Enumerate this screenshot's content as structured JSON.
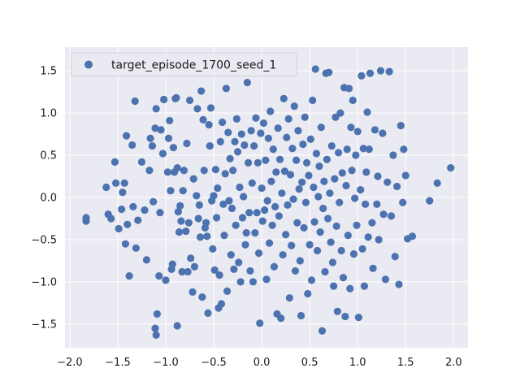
{
  "chart_data": {
    "type": "scatter",
    "title": "",
    "xlabel": "",
    "ylabel": "",
    "xlim": [
      -2.05,
      2.15
    ],
    "ylim": [
      -1.78,
      1.78
    ],
    "grid": true,
    "legend_position": "top-left",
    "x_ticks": [
      -2.0,
      -1.5,
      -1.0,
      -0.5,
      0.0,
      0.5,
      1.0,
      1.5,
      2.0
    ],
    "x_tick_labels": [
      "−2.0",
      "−1.5",
      "−1.0",
      "−0.5",
      "0.0",
      "0.5",
      "1.0",
      "1.5",
      "2.0"
    ],
    "y_ticks": [
      -1.5,
      -1.0,
      -0.5,
      0.0,
      0.5,
      1.0,
      1.5
    ],
    "y_tick_labels": [
      "−1.5",
      "−1.0",
      "−0.5",
      "0.0",
      "0.5",
      "1.0",
      "1.5"
    ],
    "colors": {
      "background": "#eaeaf2",
      "grid": "#ffffff",
      "marker": "#4c72b0"
    },
    "series": [
      {
        "name": "target_episode_1700_seed_1",
        "points": [
          [
            -1.83,
            -0.24
          ],
          [
            -1.83,
            -0.28
          ],
          [
            -1.62,
            0.12
          ],
          [
            -1.6,
            -0.2
          ],
          [
            -1.57,
            -0.25
          ],
          [
            -1.53,
            0.42
          ],
          [
            -1.52,
            0.17
          ],
          [
            -1.49,
            -0.37
          ],
          [
            -1.46,
            -0.14
          ],
          [
            -1.45,
            0.06
          ],
          [
            -1.43,
            0.17
          ],
          [
            -1.42,
            -0.55
          ],
          [
            -1.41,
            0.73
          ],
          [
            -1.4,
            -0.32
          ],
          [
            -1.38,
            -0.93
          ],
          [
            -1.35,
            0.62
          ],
          [
            -1.34,
            -0.11
          ],
          [
            -1.32,
            1.14
          ],
          [
            -1.31,
            -0.6
          ],
          [
            -1.29,
            -0.27
          ],
          [
            -1.25,
            0.42
          ],
          [
            -1.22,
            -0.15
          ],
          [
            -1.2,
            -0.74
          ],
          [
            -1.17,
            0.32
          ],
          [
            -1.16,
            0.7
          ],
          [
            -1.14,
            0.61
          ],
          [
            -1.13,
            -0.05
          ],
          [
            -1.11,
            -1.55
          ],
          [
            -1.11,
            0.82
          ],
          [
            -1.1,
            1.05
          ],
          [
            -1.1,
            -1.63
          ],
          [
            -1.09,
            -1.38
          ],
          [
            -1.07,
            -0.93
          ],
          [
            -1.06,
            -0.18
          ],
          [
            -1.05,
            0.8
          ],
          [
            -1.03,
            0.52
          ],
          [
            -1.02,
            1.16
          ],
          [
            -1.0,
            -0.98
          ],
          [
            -0.98,
            0.3
          ],
          [
            -0.97,
            0.7
          ],
          [
            -0.96,
            0.91
          ],
          [
            -0.95,
            0.08
          ],
          [
            -0.94,
            -0.85
          ],
          [
            -0.93,
            -0.79
          ],
          [
            -0.92,
            0.59
          ],
          [
            -0.91,
            0.3
          ],
          [
            -0.9,
            1.17
          ],
          [
            -0.89,
            1.18
          ],
          [
            -0.88,
            -1.52
          ],
          [
            -0.88,
            0.35
          ],
          [
            -0.87,
            -0.17
          ],
          [
            -0.86,
            -0.41
          ],
          [
            -0.85,
            -0.1
          ],
          [
            -0.84,
            -0.28
          ],
          [
            -0.83,
            -0.88
          ],
          [
            -0.82,
            0.08
          ],
          [
            -0.81,
            0.32
          ],
          [
            -0.79,
            -0.4
          ],
          [
            -0.78,
            0.64
          ],
          [
            -0.77,
            -0.88
          ],
          [
            -0.76,
            -0.3
          ],
          [
            -0.75,
            1.15
          ],
          [
            -0.74,
            -0.72
          ],
          [
            -0.72,
            -1.12
          ],
          [
            -0.71,
            0.22
          ],
          [
            -0.7,
            -0.82
          ],
          [
            -0.68,
            0.02
          ],
          [
            -0.67,
            1.05
          ],
          [
            -0.66,
            -0.25
          ],
          [
            -0.65,
            -0.09
          ],
          [
            -0.64,
            -0.47
          ],
          [
            -0.63,
            1.26
          ],
          [
            -0.62,
            -1.18
          ],
          [
            -0.61,
            0.92
          ],
          [
            -0.6,
            0.32
          ],
          [
            -0.59,
            -0.36
          ],
          [
            -0.58,
            -0.3
          ],
          [
            -0.57,
            -0.46
          ],
          [
            -0.56,
            -1.37
          ],
          [
            -0.55,
            0.86
          ],
          [
            -0.54,
            0.61
          ],
          [
            -0.53,
            1.06
          ],
          [
            -0.52,
            -0.04
          ],
          [
            -0.51,
            -0.61
          ],
          [
            -0.5,
            0.02
          ],
          [
            -0.49,
            -0.86
          ],
          [
            -0.48,
            0.33
          ],
          [
            -0.47,
            -0.24
          ],
          [
            -0.46,
            0.11
          ],
          [
            -0.45,
            -1.31
          ],
          [
            -0.44,
            -0.92
          ],
          [
            -0.43,
            0.66
          ],
          [
            -0.42,
            -1.26
          ],
          [
            -0.41,
            0.89
          ],
          [
            -0.4,
            -0.08
          ],
          [
            -0.39,
            -0.45
          ],
          [
            -0.38,
            0.28
          ],
          [
            -0.37,
            1.29
          ],
          [
            -0.36,
            -1.11
          ],
          [
            -0.35,
            0.77
          ],
          [
            -0.34,
            -0.04
          ],
          [
            -0.33,
            0.46
          ],
          [
            -0.32,
            -0.68
          ],
          [
            -0.31,
            -0.13
          ],
          [
            -0.3,
            0.32
          ],
          [
            -0.29,
            -0.85
          ],
          [
            -0.28,
            0.66
          ],
          [
            -0.27,
            -0.33
          ],
          [
            -0.26,
            0.93
          ],
          [
            -0.25,
            0.54
          ],
          [
            -0.24,
            -0.77
          ],
          [
            -0.23,
            0.12
          ],
          [
            -0.22,
            -1.0
          ],
          [
            -0.21,
            0.75
          ],
          [
            -0.2,
            -0.24
          ],
          [
            -0.19,
            0.01
          ],
          [
            -0.18,
            0.62
          ],
          [
            -0.17,
            -0.56
          ],
          [
            -0.16,
            -0.42
          ],
          [
            -0.15,
            1.36
          ],
          [
            -0.14,
            0.41
          ],
          [
            -0.13,
            -0.18
          ],
          [
            -0.12,
            -0.87
          ],
          [
            -0.11,
            0.79
          ],
          [
            -0.1,
            0.17
          ],
          [
            -0.09,
            -1.0
          ],
          [
            -0.08,
            0.61
          ],
          [
            -0.07,
            -0.42
          ],
          [
            -0.06,
            0.94
          ],
          [
            -0.05,
            -0.18
          ],
          [
            -0.04,
            0.41
          ],
          [
            -0.03,
            -0.66
          ],
          [
            -0.02,
            -1.49
          ],
          [
            -0.01,
            0.76
          ],
          [
            0.0,
            0.11
          ],
          [
            0.01,
            -0.28
          ],
          [
            0.02,
            0.88
          ],
          [
            0.03,
            -0.15
          ],
          [
            0.04,
            0.44
          ],
          [
            0.05,
            -0.97
          ],
          [
            0.06,
            -0.04
          ],
          [
            0.07,
            0.7
          ],
          [
            0.08,
            -0.54
          ],
          [
            0.09,
            1.02
          ],
          [
            0.1,
            0.19
          ],
          [
            0.11,
            -0.33
          ],
          [
            0.12,
            0.57
          ],
          [
            0.13,
            -0.82
          ],
          [
            0.14,
            -0.11
          ],
          [
            0.15,
            0.3
          ],
          [
            0.16,
            -1.38
          ],
          [
            0.17,
            0.82
          ],
          [
            0.18,
            -0.22
          ],
          [
            0.19,
            0.45
          ],
          [
            0.2,
            -1.43
          ],
          [
            0.21,
            0.05
          ],
          [
            0.22,
            -0.68
          ],
          [
            0.23,
            1.17
          ],
          [
            0.24,
            0.31
          ],
          [
            0.25,
            -0.44
          ],
          [
            0.26,
            0.71
          ],
          [
            0.27,
            -0.09
          ],
          [
            0.28,
            0.93
          ],
          [
            0.29,
            -1.19
          ],
          [
            0.3,
            0.27
          ],
          [
            0.31,
            -0.57
          ],
          [
            0.32,
            0.58
          ],
          [
            0.33,
            -0.02
          ],
          [
            0.34,
            1.08
          ],
          [
            0.35,
            -0.87
          ],
          [
            0.36,
            0.44
          ],
          [
            0.37,
            -0.3
          ],
          [
            0.38,
            0.79
          ],
          [
            0.39,
            0.1
          ],
          [
            0.4,
            -0.75
          ],
          [
            0.41,
            -1.4
          ],
          [
            0.42,
            0.18
          ],
          [
            0.43,
            0.63
          ],
          [
            0.44,
            -0.36
          ],
          [
            0.45,
            0.95
          ],
          [
            0.46,
            -0.06
          ],
          [
            0.47,
            0.41
          ],
          [
            0.48,
            -1.14
          ],
          [
            0.49,
            0.26
          ],
          [
            0.5,
            -0.56
          ],
          [
            0.51,
            0.69
          ],
          [
            0.52,
            -0.98
          ],
          [
            0.53,
            1.15
          ],
          [
            0.54,
            0.12
          ],
          [
            0.55,
            -0.29
          ],
          [
            0.56,
            1.52
          ],
          [
            0.57,
            0.52
          ],
          [
            0.58,
            -0.63
          ],
          [
            0.59,
            0.01
          ],
          [
            0.6,
            0.37
          ],
          [
            0.61,
            -0.41
          ],
          [
            0.62,
            0.83
          ],
          [
            0.63,
            -1.58
          ],
          [
            0.64,
            -0.13
          ],
          [
            0.65,
            0.19
          ],
          [
            0.66,
            -0.88
          ],
          [
            0.67,
            1.47
          ],
          [
            0.68,
            0.45
          ],
          [
            0.69,
            -0.25
          ],
          [
            0.7,
            1.48
          ],
          [
            0.71,
            0.05
          ],
          [
            0.72,
            -0.53
          ],
          [
            0.73,
            0.61
          ],
          [
            0.74,
            -0.77
          ],
          [
            0.75,
            -1.05
          ],
          [
            0.76,
            0.22
          ],
          [
            0.77,
            0.95
          ],
          [
            0.78,
            -0.34
          ],
          [
            0.79,
            -1.35
          ],
          [
            0.8,
            0.53
          ],
          [
            0.81,
            -0.06
          ],
          [
            0.82,
            1.0
          ],
          [
            0.83,
            -0.63
          ],
          [
            0.84,
            0.29
          ],
          [
            0.85,
            -0.95
          ],
          [
            0.86,
            1.3
          ],
          [
            0.87,
            -1.41
          ],
          [
            0.88,
            0.14
          ],
          [
            0.89,
            0.57
          ],
          [
            0.9,
            -0.45
          ],
          [
            0.91,
            1.29
          ],
          [
            0.92,
            -1.08
          ],
          [
            0.93,
            0.83
          ],
          [
            0.94,
            0.32
          ],
          [
            0.95,
            1.15
          ],
          [
            0.96,
            -0.67
          ],
          [
            0.97,
            -0.01
          ],
          [
            0.98,
            0.5
          ],
          [
            0.99,
            -0.33
          ],
          [
            1.0,
            0.78
          ],
          [
            1.01,
            -1.42
          ],
          [
            1.03,
            0.09
          ],
          [
            1.04,
            1.44
          ],
          [
            1.05,
            -0.61
          ],
          [
            1.06,
            0.58
          ],
          [
            1.07,
            -1.05
          ],
          [
            1.08,
            -0.08
          ],
          [
            1.09,
            0.3
          ],
          [
            1.1,
            1.01
          ],
          [
            1.11,
            -0.47
          ],
          [
            1.12,
            0.57
          ],
          [
            1.13,
            1.47
          ],
          [
            1.15,
            -0.3
          ],
          [
            1.16,
            -0.84
          ],
          [
            1.18,
            0.8
          ],
          [
            1.2,
            -0.08
          ],
          [
            1.21,
            0.25
          ],
          [
            1.22,
            -0.5
          ],
          [
            1.24,
            1.5
          ],
          [
            1.26,
            0.76
          ],
          [
            1.27,
            -0.2
          ],
          [
            1.29,
            -0.97
          ],
          [
            1.31,
            0.18
          ],
          [
            1.33,
            1.49
          ],
          [
            1.35,
            -0.22
          ],
          [
            1.37,
            0.5
          ],
          [
            1.39,
            -0.7
          ],
          [
            1.41,
            0.13
          ],
          [
            1.43,
            -1.03
          ],
          [
            1.45,
            0.85
          ],
          [
            1.47,
            -0.06
          ],
          [
            1.48,
            0.57
          ],
          [
            1.5,
            0.26
          ],
          [
            1.52,
            -0.49
          ],
          [
            1.57,
            -0.46
          ],
          [
            1.75,
            -0.04
          ],
          [
            1.83,
            0.17
          ],
          [
            1.97,
            0.35
          ]
        ]
      }
    ]
  }
}
